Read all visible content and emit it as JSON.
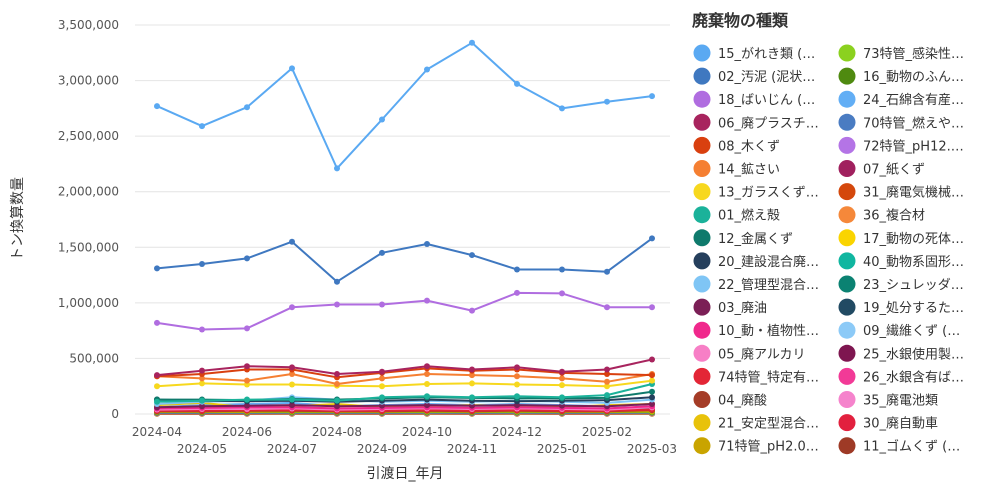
{
  "chart_data": {
    "type": "line",
    "title": "",
    "xlabel": "引渡日_年月",
    "ylabel": "トン換算数量",
    "ylim": [
      0,
      3500000
    ],
    "yticks": [
      0,
      500000,
      1000000,
      1500000,
      2000000,
      2500000,
      3000000,
      3500000
    ],
    "ytick_labels": [
      "0",
      "500,000",
      "1,000,000",
      "1,500,000",
      "2,000,000",
      "2,500,000",
      "3,000,000",
      "3,500,000"
    ],
    "categories": [
      "2024-04",
      "2024-05",
      "2024-06",
      "2024-07",
      "2024-08",
      "2024-09",
      "2024-10",
      "2024-11",
      "2024-12",
      "2025-01",
      "2025-02",
      "2025-03"
    ],
    "grid": true,
    "legend_title": "廃棄物の種類",
    "legend_placement": "right",
    "series": [
      {
        "name": "15_がれき類 (…",
        "color": "#5aa9f2",
        "values": [
          2770000,
          2590000,
          2760000,
          3110000,
          2210000,
          2650000,
          3100000,
          3340000,
          2970000,
          2750000,
          2810000,
          2860000
        ]
      },
      {
        "name": "02_汚泥 (泥状…",
        "color": "#3f78c0",
        "values": [
          1310000,
          1350000,
          1400000,
          1550000,
          1190000,
          1450000,
          1530000,
          1430000,
          1300000,
          1300000,
          1280000,
          1580000
        ]
      },
      {
        "name": "18_ばいじん (…",
        "color": "#b06de0",
        "values": [
          820000,
          760000,
          770000,
          960000,
          985000,
          985000,
          1020000,
          930000,
          1090000,
          1085000,
          960000,
          960000
        ]
      },
      {
        "name": "06_廃プラスチ…",
        "color": "#a8245e",
        "values": [
          350000,
          390000,
          430000,
          420000,
          360000,
          380000,
          430000,
          400000,
          420000,
          380000,
          400000,
          490000
        ]
      },
      {
        "name": "08_木くず",
        "color": "#d9400f",
        "values": [
          340000,
          360000,
          400000,
          400000,
          330000,
          370000,
          410000,
          390000,
          400000,
          370000,
          360000,
          350000
        ]
      },
      {
        "name": "14_鉱さい",
        "color": "#f57f32",
        "values": [
          340000,
          320000,
          300000,
          360000,
          270000,
          320000,
          360000,
          350000,
          340000,
          320000,
          290000,
          360000
        ]
      },
      {
        "name": "13_ガラスくず…",
        "color": "#f7d81e",
        "values": [
          250000,
          275000,
          265000,
          265000,
          255000,
          250000,
          270000,
          275000,
          265000,
          260000,
          250000,
          300000
        ]
      },
      {
        "name": "01_燃え殻",
        "color": "#1bb29a",
        "values": [
          110000,
          120000,
          130000,
          130000,
          120000,
          150000,
          160000,
          150000,
          160000,
          150000,
          170000,
          270000
        ]
      },
      {
        "name": "12_金属くず",
        "color": "#0f7a6c",
        "values": [
          130000,
          130000,
          125000,
          135000,
          130000,
          140000,
          150000,
          145000,
          140000,
          140000,
          145000,
          200000
        ]
      },
      {
        "name": "20_建設混合廃…",
        "color": "#253f5c",
        "values": [
          130000,
          120000,
          115000,
          120000,
          110000,
          120000,
          130000,
          120000,
          115000,
          120000,
          125000,
          150000
        ]
      },
      {
        "name": "22_管理型混合…",
        "color": "#7fc5f5",
        "values": [
          90000,
          110000,
          120000,
          150000,
          130000,
          110000,
          120000,
          110000,
          120000,
          110000,
          100000,
          130000
        ]
      },
      {
        "name": "03_廃油",
        "color": "#7b1f56",
        "values": [
          60000,
          70000,
          75000,
          80000,
          70000,
          75000,
          80000,
          75000,
          80000,
          75000,
          70000,
          90000
        ]
      },
      {
        "name": "10_動・植物性…",
        "color": "#f0288c",
        "values": [
          50000,
          55000,
          60000,
          60000,
          50000,
          55000,
          60000,
          55000,
          60000,
          55000,
          50000,
          70000
        ]
      },
      {
        "name": "05_廃アルカリ",
        "color": "#f77fc6",
        "values": [
          40000,
          45000,
          45000,
          50000,
          40000,
          45000,
          50000,
          45000,
          50000,
          45000,
          40000,
          60000
        ]
      },
      {
        "name": "74特管_特定有…",
        "color": "#e32636",
        "values": [
          30000,
          30000,
          35000,
          35000,
          30000,
          30000,
          35000,
          30000,
          35000,
          30000,
          30000,
          40000
        ]
      },
      {
        "name": "04_廃酸",
        "color": "#a53c27",
        "values": [
          25000,
          25000,
          30000,
          30000,
          25000,
          25000,
          30000,
          25000,
          30000,
          25000,
          25000,
          35000
        ]
      },
      {
        "name": "21_安定型混合…",
        "color": "#e8c20a",
        "values": [
          80000,
          100000,
          60000,
          70000,
          90000,
          60000,
          70000,
          80000,
          70000,
          60000,
          80000,
          90000
        ]
      },
      {
        "name": "71特管_pH2.0…",
        "color": "#c9a400",
        "values": [
          20000,
          20000,
          20000,
          25000,
          20000,
          20000,
          25000,
          20000,
          25000,
          20000,
          20000,
          25000
        ]
      },
      {
        "name": "73特管_感染性…",
        "color": "#8bd11f",
        "values": [
          20000,
          20000,
          20000,
          20000,
          20000,
          20000,
          20000,
          20000,
          20000,
          20000,
          20000,
          20000
        ]
      },
      {
        "name": "16_動物のふん…",
        "color": "#4f8a10",
        "values": [
          15000,
          15000,
          15000,
          15000,
          15000,
          15000,
          15000,
          15000,
          15000,
          15000,
          15000,
          15000
        ]
      },
      {
        "name": "24_石綿含有産…",
        "color": "#62aef5",
        "values": [
          60000,
          80000,
          90000,
          100000,
          70000,
          80000,
          90000,
          80000,
          90000,
          80000,
          70000,
          90000
        ]
      },
      {
        "name": "70特管_燃えや…",
        "color": "#4a7cc2",
        "values": [
          10000,
          10000,
          10000,
          12000,
          10000,
          10000,
          12000,
          10000,
          12000,
          10000,
          10000,
          12000
        ]
      },
      {
        "name": "72特管_pH12.…",
        "color": "#b474e6",
        "values": [
          10000,
          10000,
          10000,
          10000,
          10000,
          10000,
          10000,
          10000,
          10000,
          10000,
          10000,
          10000
        ]
      },
      {
        "name": "07_紙くず",
        "color": "#a0205e",
        "values": [
          30000,
          35000,
          35000,
          40000,
          30000,
          35000,
          40000,
          35000,
          40000,
          35000,
          30000,
          40000
        ]
      },
      {
        "name": "31_廃電気機械…",
        "color": "#d4480c",
        "values": [
          8000,
          8000,
          8000,
          9000,
          8000,
          8000,
          9000,
          8000,
          9000,
          8000,
          8000,
          9000
        ]
      },
      {
        "name": "36_複合材",
        "color": "#f5883a",
        "values": [
          8000,
          8000,
          8000,
          8000,
          8000,
          8000,
          8000,
          8000,
          8000,
          8000,
          8000,
          8000
        ]
      },
      {
        "name": "17_動物の死体…",
        "color": "#fad400",
        "values": [
          5000,
          5000,
          5000,
          5000,
          5000,
          5000,
          5000,
          5000,
          5000,
          5000,
          5000,
          5000
        ]
      },
      {
        "name": "40_動物系固形…",
        "color": "#10b6a0",
        "values": [
          5000,
          5000,
          5000,
          5000,
          5000,
          5000,
          5000,
          5000,
          5000,
          5000,
          5000,
          5000
        ]
      },
      {
        "name": "23_シュレッダ…",
        "color": "#0b8272",
        "values": [
          40000,
          45000,
          40000,
          45000,
          40000,
          45000,
          50000,
          45000,
          45000,
          40000,
          45000,
          50000
        ]
      },
      {
        "name": "19_処分するた…",
        "color": "#214a63",
        "values": [
          20000,
          20000,
          25000,
          25000,
          20000,
          20000,
          25000,
          20000,
          25000,
          20000,
          20000,
          25000
        ]
      },
      {
        "name": "09_繊維くず (…",
        "color": "#8ccaf7",
        "values": [
          5000,
          5000,
          5000,
          5000,
          5000,
          5000,
          5000,
          5000,
          5000,
          5000,
          5000,
          5000
        ]
      },
      {
        "name": "25_水銀使用製…",
        "color": "#7e1650",
        "values": [
          3000,
          3000,
          3000,
          3000,
          3000,
          3000,
          3000,
          3000,
          3000,
          3000,
          3000,
          3000
        ]
      },
      {
        "name": "26_水銀含有ば…",
        "color": "#f23a97",
        "values": [
          3000,
          3000,
          3000,
          3000,
          3000,
          3000,
          3000,
          3000,
          3000,
          3000,
          3000,
          3000
        ]
      },
      {
        "name": "35_廃電池類",
        "color": "#f583cc",
        "values": [
          2000,
          2000,
          2000,
          2000,
          2000,
          2000,
          2000,
          2000,
          2000,
          2000,
          2000,
          2000
        ]
      },
      {
        "name": "30_廃自動車",
        "color": "#e2203e",
        "values": [
          2000,
          2000,
          2000,
          2000,
          2000,
          2000,
          2000,
          2000,
          2000,
          2000,
          2000,
          2000
        ]
      },
      {
        "name": "11_ゴムくず (…",
        "color": "#9e3a26",
        "values": [
          2000,
          2000,
          2000,
          2000,
          2000,
          2000,
          2000,
          2000,
          2000,
          2000,
          2000,
          2000
        ]
      }
    ]
  }
}
